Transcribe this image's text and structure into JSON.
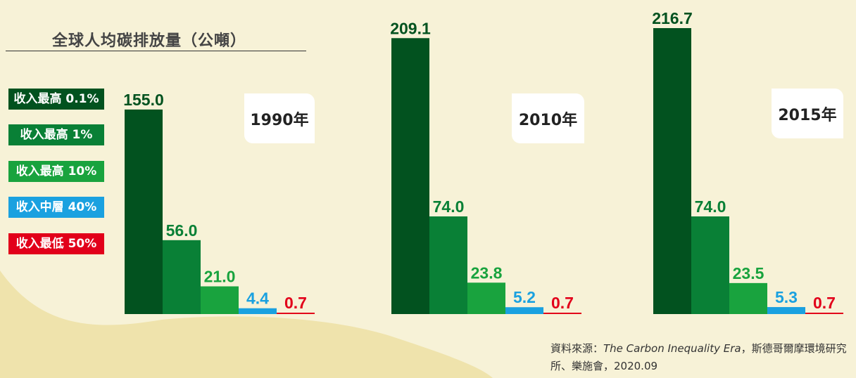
{
  "title": "全球人均碳排放量（公噸）",
  "legend": [
    {
      "label": "收入最高 0.1%",
      "color": "#02521f"
    },
    {
      "label": "收入最高 1%",
      "color": "#098036"
    },
    {
      "label": "收入最高 10%",
      "color": "#19a33e"
    },
    {
      "label": "收入中層 40%",
      "color": "#1aa1e0"
    },
    {
      "label": "收入最低 50%",
      "color": "#e2001a"
    }
  ],
  "source": {
    "prefix": "資料來源：",
    "title": "The Carbon Inequality Era",
    "suffix": "，斯德哥爾摩環境研究所、樂施會，2020.09"
  },
  "chart_data": [
    {
      "type": "bar",
      "title": "1990年",
      "categories": [
        "收入最高 0.1%",
        "收入最高 1%",
        "收入最高 10%",
        "收入中層 40%",
        "收入最低 50%"
      ],
      "values": [
        155.0,
        56.0,
        21.0,
        4.4,
        0.7
      ]
    },
    {
      "type": "bar",
      "title": "2010年",
      "categories": [
        "收入最高 0.1%",
        "收入最高 1%",
        "收入最高 10%",
        "收入中層 40%",
        "收入最低 50%"
      ],
      "values": [
        209.1,
        74.0,
        23.8,
        5.2,
        0.7
      ]
    },
    {
      "type": "bar",
      "title": "2015年",
      "categories": [
        "收入最高 0.1%",
        "收入最高 1%",
        "收入最高 10%",
        "收入中層 40%",
        "收入最低 50%"
      ],
      "values": [
        216.7,
        74.0,
        23.5,
        5.3,
        0.7
      ]
    }
  ]
}
